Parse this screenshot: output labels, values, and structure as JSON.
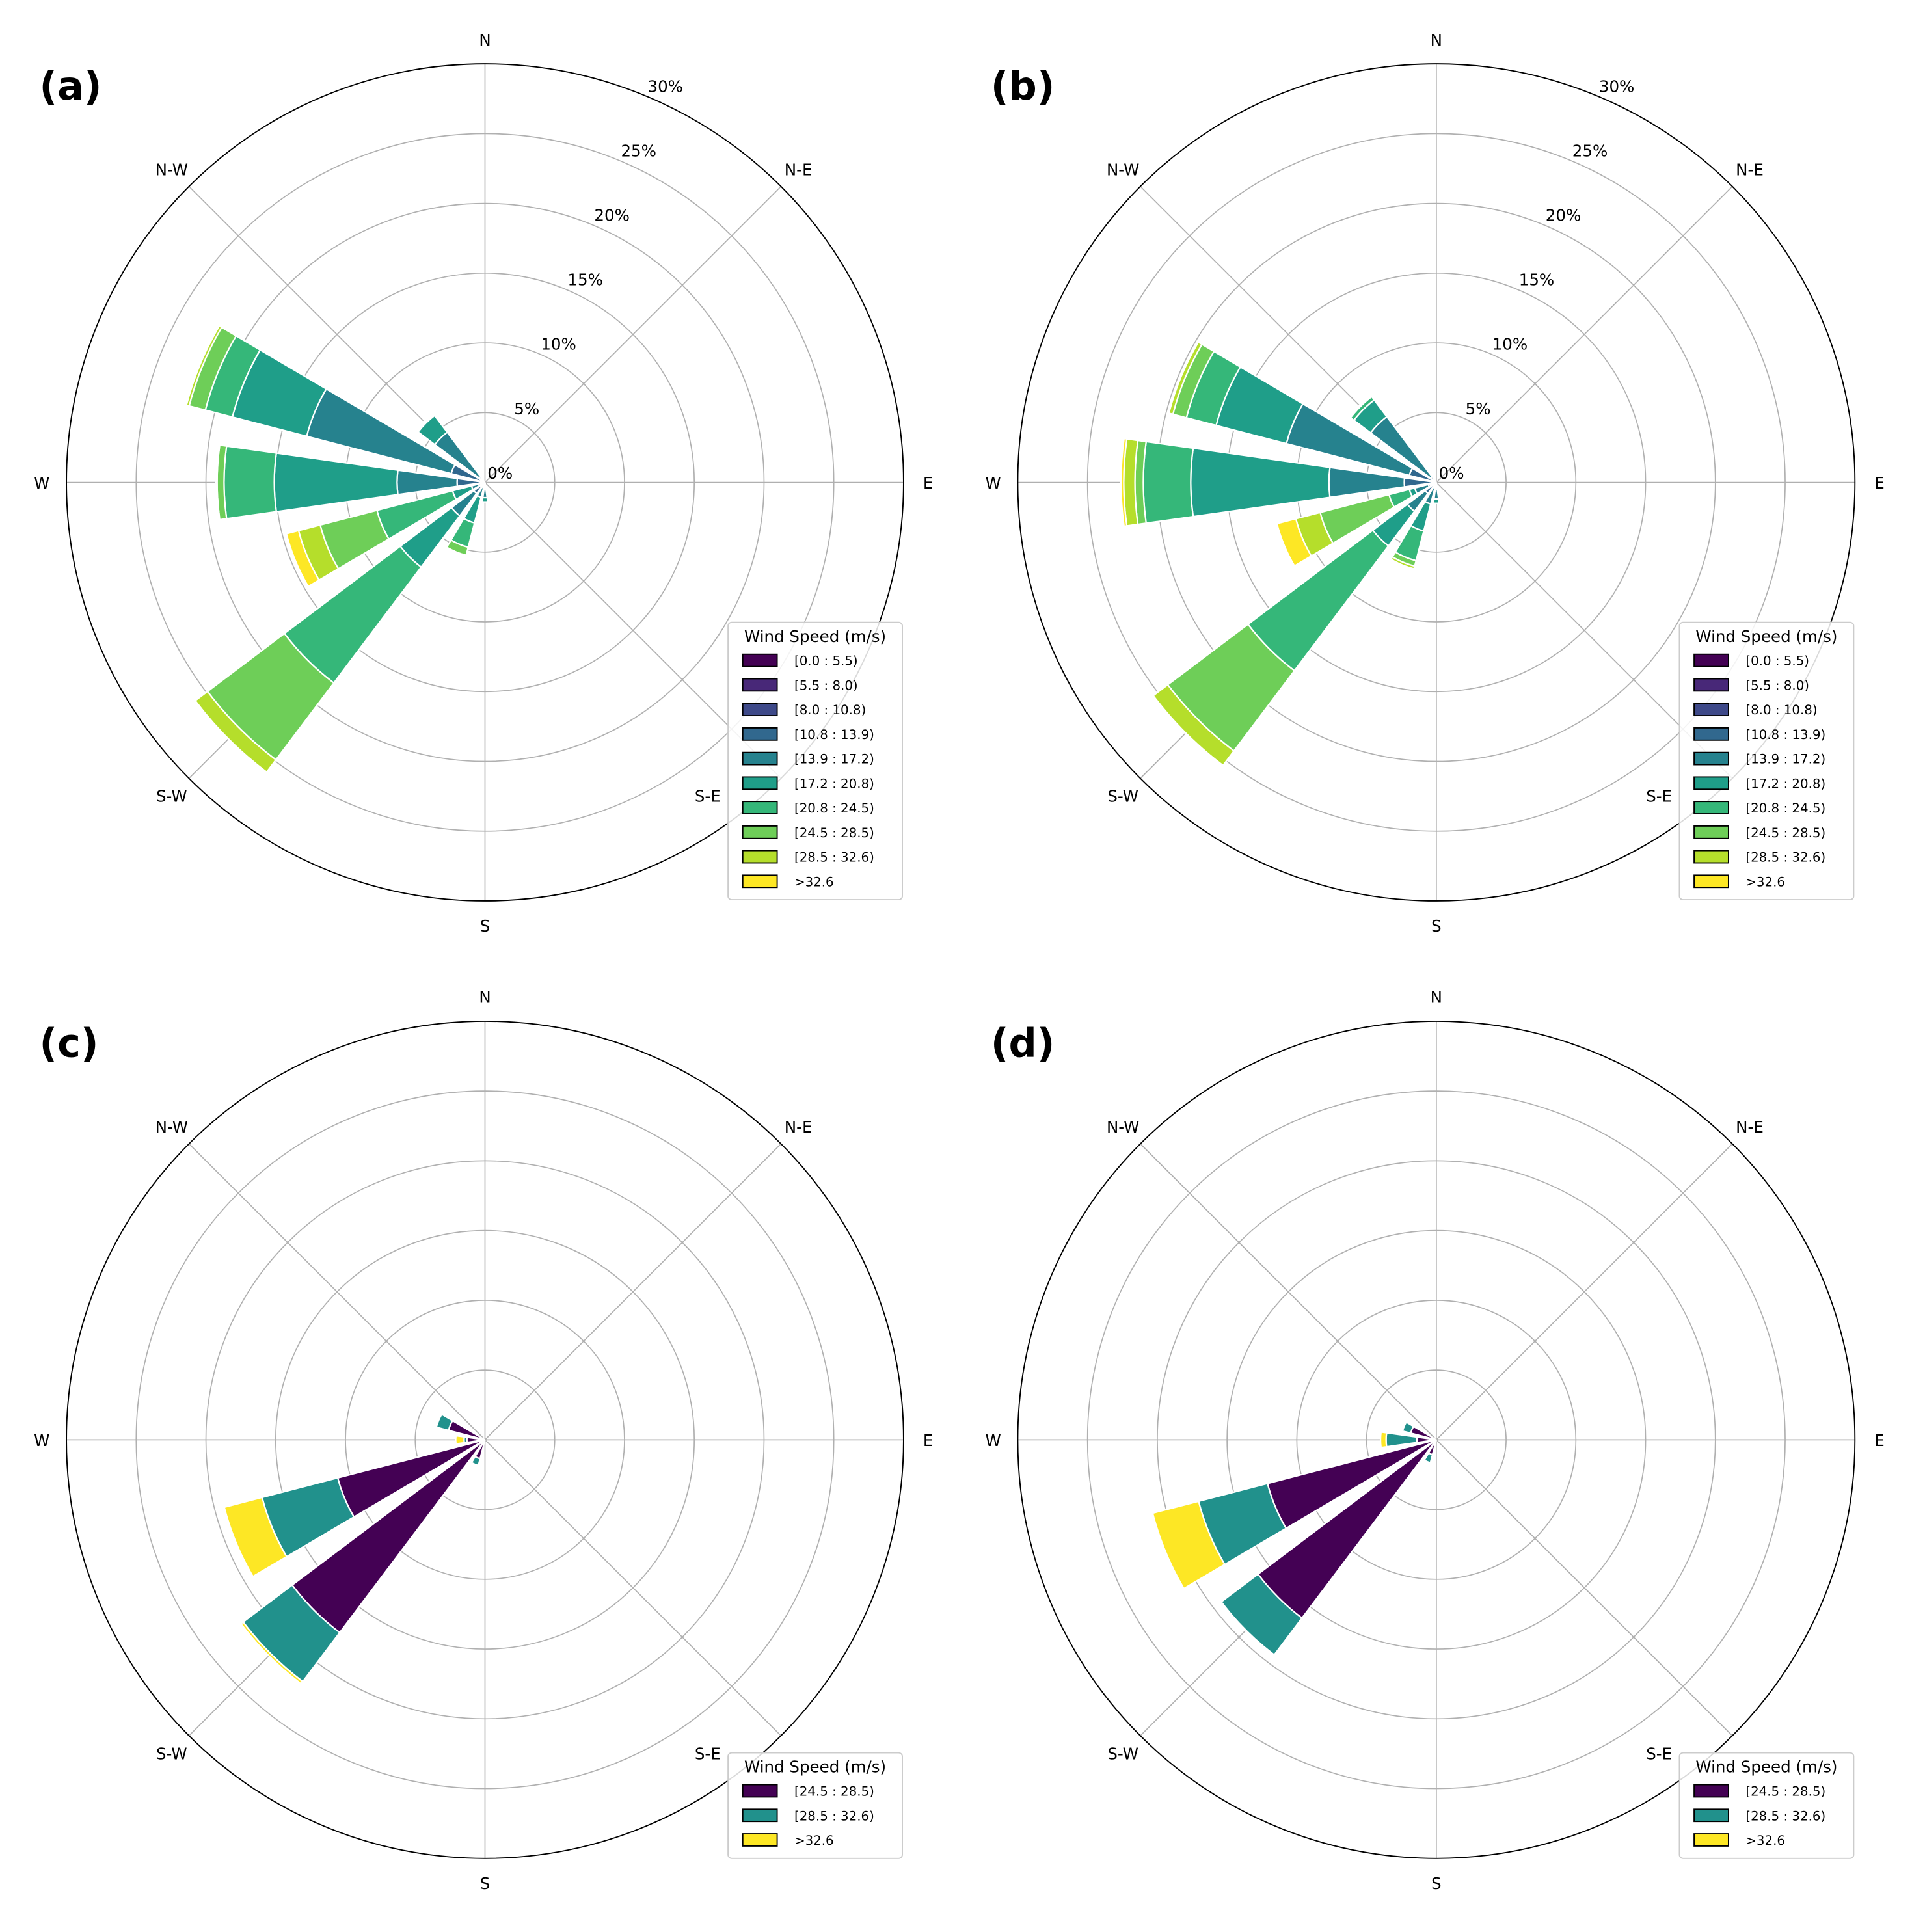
{
  "chart_data": [
    {
      "type": "windrose",
      "panel_label": "(a)",
      "direction_labels": [
        "N",
        "N-E",
        "E",
        "S-E",
        "S",
        "S-W",
        "W",
        "N-W"
      ],
      "radial_ticks": [
        "0%",
        "5%",
        "10%",
        "15%",
        "20%",
        "25%",
        "30%"
      ],
      "rmax": 30,
      "grid": true,
      "legend_title": "Wind Speed (m/s)",
      "legend_position": "bottom-right",
      "bins": [
        "[0.0 : 5.5)",
        "[5.5 : 8.0)",
        "[8.0 : 10.8)",
        "[10.8 : 13.9)",
        "[13.9 : 17.2)",
        "[17.2 : 20.8)",
        "[20.8 : 24.5)",
        "[24.5 : 28.5)",
        "[28.5 : 32.6)",
        ">32.6"
      ],
      "colors": [
        "#440154",
        "#482878",
        "#3e4989",
        "#31688e",
        "#26828e",
        "#1f9e89",
        "#35b779",
        "#6ece58",
        "#b5de2b",
        "#fde725"
      ],
      "sectors": [
        {
          "direction": 180,
          "values": [
            0,
            0,
            0.1,
            0.4,
            0.6,
            0.3,
            0,
            0,
            0,
            0
          ]
        },
        {
          "direction": 202.5,
          "values": [
            0,
            0,
            0,
            0.3,
            0.8,
            1.9,
            1.8,
            0.6,
            0.1,
            0
          ]
        },
        {
          "direction": 225,
          "values": [
            0,
            0,
            0.2,
            0.8,
            2.0,
            4.6,
            10.4,
            6.9,
            1.1,
            0
          ]
        },
        {
          "direction": 247.5,
          "values": [
            0,
            0,
            0,
            0.3,
            0.7,
            1.4,
            5.6,
            4.2,
            1.6,
            0.9
          ]
        },
        {
          "direction": 270,
          "values": [
            0,
            0,
            0.3,
            1.7,
            4.3,
            8.8,
            3.6,
            0.5,
            0.05,
            0.05
          ]
        },
        {
          "direction": 292.5,
          "values": [
            0,
            0,
            0.3,
            2.2,
            10.7,
            5.5,
            2.0,
            1.2,
            0.2,
            0
          ]
        },
        {
          "direction": 315,
          "values": [
            0,
            0,
            0,
            0.5,
            4.0,
            1.5,
            0.1,
            0.1,
            0,
            0
          ]
        }
      ]
    },
    {
      "type": "windrose",
      "panel_label": "(b)",
      "direction_labels": [
        "N",
        "N-E",
        "E",
        "S-E",
        "S",
        "S-W",
        "W",
        "N-W"
      ],
      "radial_ticks": [
        "0%",
        "5%",
        "10%",
        "15%",
        "20%",
        "25%",
        "30%"
      ],
      "rmax": 30,
      "grid": true,
      "legend_title": "Wind Speed (m/s)",
      "legend_position": "bottom-right",
      "bins": [
        "[0.0 : 5.5)",
        "[5.5 : 8.0)",
        "[8.0 : 10.8)",
        "[10.8 : 13.9)",
        "[13.9 : 17.2)",
        "[17.2 : 20.8)",
        "[20.8 : 24.5)",
        "[24.5 : 28.5)",
        "[28.5 : 32.6)",
        ">32.6"
      ],
      "colors": [
        "#440154",
        "#482878",
        "#3e4989",
        "#31688e",
        "#26828e",
        "#1f9e89",
        "#35b779",
        "#6ece58",
        "#b5de2b",
        "#fde725"
      ],
      "sectors": [
        {
          "direction": 180,
          "values": [
            0,
            0,
            0.1,
            0.4,
            0.7,
            0.3,
            0,
            0,
            0,
            0
          ]
        },
        {
          "direction": 202.5,
          "values": [
            0,
            0,
            0,
            0.4,
            1.2,
            2.0,
            2.2,
            0.4,
            0.2,
            0
          ]
        },
        {
          "direction": 225,
          "values": [
            0,
            0,
            0.2,
            0.8,
            1.6,
            3.1,
            11.2,
            7.2,
            1.3,
            0
          ]
        },
        {
          "direction": 247.5,
          "values": [
            0,
            0,
            0,
            0.6,
            1.0,
            0.4,
            1.5,
            5.1,
            1.8,
            1.4
          ]
        },
        {
          "direction": 270,
          "values": [
            0,
            0,
            0.3,
            2.0,
            5.4,
            9.9,
            3.4,
            0.6,
            0.8,
            0.2
          ]
        },
        {
          "direction": 292.5,
          "values": [
            0,
            0,
            0.2,
            1.8,
            9.1,
            5.2,
            2.2,
            1.0,
            0.3,
            0
          ]
        },
        {
          "direction": 315,
          "values": [
            0,
            0,
            0,
            0.5,
            5.4,
            1.5,
            0.3,
            0.1,
            0,
            0
          ]
        }
      ]
    },
    {
      "type": "windrose",
      "panel_label": "(c)",
      "direction_labels": [
        "N",
        "N-E",
        "E",
        "S-E",
        "S",
        "S-W",
        "W",
        "N-W"
      ],
      "radial_ticks": [],
      "rmax": 30,
      "grid": true,
      "legend_title": "Wind Speed (m/s)",
      "legend_position": "bottom-right",
      "bins": [
        "[24.5 : 28.5)",
        "[28.5 : 32.6)",
        ">32.6"
      ],
      "colors": [
        "#440154",
        "#21918c",
        "#fde725"
      ],
      "sectors": [
        {
          "direction": 202.5,
          "values": [
            1.4,
            0.5,
            0
          ]
        },
        {
          "direction": 225,
          "values": [
            17.3,
            4.4,
            0.2
          ]
        },
        {
          "direction": 247.5,
          "values": [
            10.9,
            5.6,
            2.8
          ]
        },
        {
          "direction": 270,
          "values": [
            1.3,
            0.2,
            0.6
          ]
        },
        {
          "direction": 292.5,
          "values": [
            2.7,
            0.9,
            0
          ]
        }
      ]
    },
    {
      "type": "windrose",
      "panel_label": "(d)",
      "direction_labels": [
        "N",
        "N-E",
        "E",
        "S-E",
        "S",
        "S-W",
        "W",
        "N-W"
      ],
      "radial_ticks": [],
      "rmax": 30,
      "grid": true,
      "legend_title": "Wind Speed (m/s)",
      "legend_position": "bottom-right",
      "bins": [
        "[24.5 : 28.5)",
        "[28.5 : 32.6)",
        ">32.6"
      ],
      "colors": [
        "#440154",
        "#21918c",
        "#fde725"
      ],
      "sectors": [
        {
          "direction": 202.5,
          "values": [
            1.1,
            0.6,
            0
          ]
        },
        {
          "direction": 225,
          "values": [
            16.0,
            3.3,
            0
          ]
        },
        {
          "direction": 247.5,
          "values": [
            12.5,
            5.1,
            3.4
          ]
        },
        {
          "direction": 270,
          "values": [
            1.4,
            2.2,
            0.4
          ]
        },
        {
          "direction": 292.5,
          "values": [
            1.9,
            0.6,
            0
          ]
        }
      ]
    }
  ]
}
